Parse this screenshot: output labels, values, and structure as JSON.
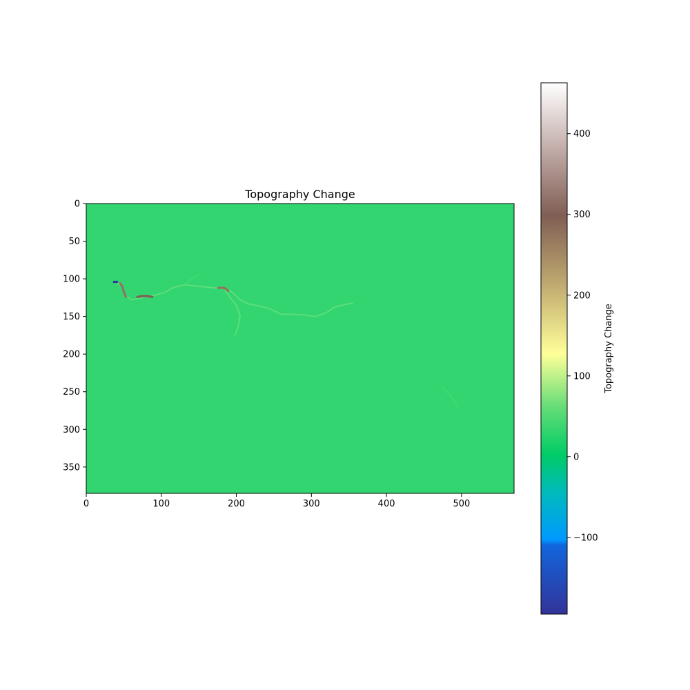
{
  "chart_data": {
    "type": "heatmap",
    "title": "Topography Change",
    "xlabel": "",
    "ylabel": "",
    "xlim": [
      0,
      570
    ],
    "ylim": [
      385,
      0
    ],
    "x_ticks": [
      0,
      100,
      200,
      300,
      400,
      500
    ],
    "y_ticks": [
      0,
      50,
      100,
      150,
      200,
      250,
      300,
      350
    ],
    "grid": false,
    "background_value": 0,
    "colorbar": {
      "label": "Topography Change",
      "range": [
        -195,
        463
      ],
      "ticks": [
        -100,
        0,
        100,
        200,
        300,
        400
      ],
      "colormap": "terrain",
      "colors": {
        "min": "#333399",
        "low": "#0099ff",
        "zero": "#00cc66",
        "mid": "#ffff99",
        "high": "#805e54",
        "max": "#ffffff"
      }
    },
    "features": [
      {
        "name": "main-channel",
        "value": 60,
        "path": [
          [
            40,
            105
          ],
          [
            48,
            110
          ],
          [
            52,
            122
          ],
          [
            60,
            128
          ],
          [
            75,
            125
          ],
          [
            90,
            122
          ],
          [
            105,
            118
          ],
          [
            115,
            112
          ],
          [
            130,
            108
          ],
          [
            150,
            110
          ],
          [
            170,
            112
          ],
          [
            185,
            113
          ],
          [
            195,
            118
          ],
          [
            205,
            128
          ],
          [
            215,
            133
          ],
          [
            230,
            136
          ],
          [
            245,
            140
          ],
          [
            260,
            147
          ],
          [
            275,
            147
          ],
          [
            290,
            148
          ],
          [
            305,
            150
          ],
          [
            320,
            145
          ],
          [
            330,
            138
          ],
          [
            345,
            134
          ],
          [
            355,
            132
          ]
        ]
      },
      {
        "name": "high-deposit-1",
        "value": 320,
        "path": [
          [
            45,
            106
          ],
          [
            48,
            110
          ],
          [
            50,
            117
          ],
          [
            53,
            124
          ]
        ]
      },
      {
        "name": "high-deposit-2",
        "value": 300,
        "path": [
          [
            68,
            124
          ],
          [
            75,
            123
          ],
          [
            82,
            123
          ],
          [
            88,
            124
          ]
        ]
      },
      {
        "name": "high-deposit-3",
        "value": 280,
        "path": [
          [
            176,
            112
          ],
          [
            184,
            112
          ],
          [
            189,
            116
          ]
        ]
      },
      {
        "name": "erosion-spot",
        "value": -190,
        "path": [
          [
            37,
            104
          ],
          [
            41,
            104
          ]
        ]
      },
      {
        "name": "tributary-1",
        "value": 60,
        "path": [
          [
            185,
            115
          ],
          [
            192,
            125
          ],
          [
            200,
            135
          ],
          [
            205,
            150
          ],
          [
            202,
            165
          ],
          [
            198,
            175
          ]
        ]
      },
      {
        "name": "tributary-2",
        "value": 40,
        "path": [
          [
            130,
            108
          ],
          [
            140,
            100
          ],
          [
            150,
            95
          ]
        ]
      },
      {
        "name": "side-deposit",
        "value": 40,
        "path": [
          [
            475,
            245
          ],
          [
            482,
            252
          ],
          [
            490,
            262
          ],
          [
            495,
            270
          ]
        ]
      }
    ]
  }
}
